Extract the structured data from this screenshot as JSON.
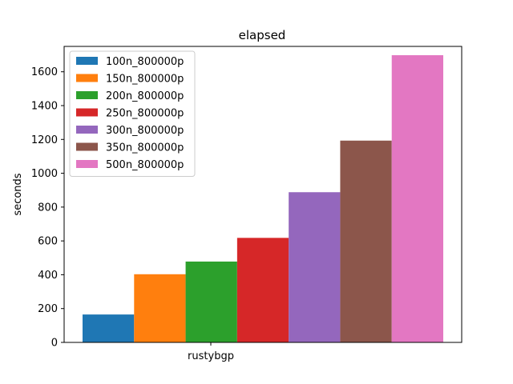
{
  "chart_data": {
    "type": "bar",
    "title": "elapsed",
    "xlabel": "",
    "ylabel": "seconds",
    "categories": [
      "rustybgp"
    ],
    "ylim": [
      0,
      1750
    ],
    "yticks": [
      0,
      200,
      400,
      600,
      800,
      1000,
      1200,
      1400,
      1600
    ],
    "grid": false,
    "legend_position": "upper-left",
    "series": [
      {
        "name": "100n_800000p",
        "values": [
          165
        ],
        "color": "#1f77b4"
      },
      {
        "name": "150n_800000p",
        "values": [
          403
        ],
        "color": "#ff7f0e"
      },
      {
        "name": "200n_800000p",
        "values": [
          478
        ],
        "color": "#2ca02c"
      },
      {
        "name": "250n_800000p",
        "values": [
          618
        ],
        "color": "#d62728"
      },
      {
        "name": "300n_800000p",
        "values": [
          888
        ],
        "color": "#9467bd"
      },
      {
        "name": "350n_800000p",
        "values": [
          1193
        ],
        "color": "#8c564b"
      },
      {
        "name": "500n_800000p",
        "values": [
          1698
        ],
        "color": "#e377c2"
      }
    ]
  }
}
